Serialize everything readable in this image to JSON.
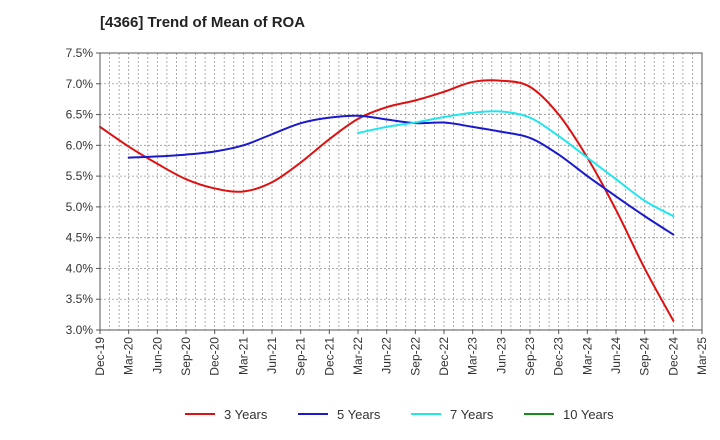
{
  "chart_data": {
    "type": "line",
    "title": "[4366]  Trend of Mean of ROA",
    "xlabel": "",
    "ylabel": "",
    "ylim": [
      3.0,
      7.5
    ],
    "y_ticks": [
      "3.0%",
      "3.5%",
      "4.0%",
      "4.5%",
      "5.0%",
      "5.5%",
      "6.0%",
      "6.5%",
      "7.0%",
      "7.5%"
    ],
    "x_tick_labels": [
      "Dec-19",
      "Mar-20",
      "Jun-20",
      "Sep-20",
      "Dec-20",
      "Mar-21",
      "Jun-21",
      "Sep-21",
      "Dec-21",
      "Mar-22",
      "Jun-22",
      "Sep-22",
      "Dec-22",
      "Mar-23",
      "Jun-23",
      "Sep-23",
      "Dec-23",
      "Mar-24",
      "Jun-24",
      "Sep-24",
      "Dec-24",
      "Mar-25"
    ],
    "grid": true,
    "legend_position": "bottom",
    "series": [
      {
        "name": "3 Years",
        "color": "#dd1111",
        "points": [
          [
            0,
            6.3
          ],
          [
            1,
            5.98
          ],
          [
            2,
            5.7
          ],
          [
            3,
            5.45
          ],
          [
            4,
            5.3
          ],
          [
            5,
            5.25
          ],
          [
            6,
            5.4
          ],
          [
            7,
            5.72
          ],
          [
            8,
            6.1
          ],
          [
            9,
            6.43
          ],
          [
            10,
            6.62
          ],
          [
            11,
            6.73
          ],
          [
            12,
            6.87
          ],
          [
            13,
            7.03
          ],
          [
            14,
            7.05
          ],
          [
            15,
            6.95
          ],
          [
            16,
            6.5
          ],
          [
            17,
            5.8
          ],
          [
            18,
            4.95
          ],
          [
            19,
            4.0
          ],
          [
            20,
            3.15
          ]
        ]
      },
      {
        "name": "5 Years",
        "color": "#1a1acc",
        "points": [
          [
            1,
            5.8
          ],
          [
            2,
            5.82
          ],
          [
            3,
            5.85
          ],
          [
            4,
            5.9
          ],
          [
            5,
            6.0
          ],
          [
            6,
            6.18
          ],
          [
            7,
            6.36
          ],
          [
            8,
            6.45
          ],
          [
            9,
            6.48
          ],
          [
            10,
            6.42
          ],
          [
            11,
            6.36
          ],
          [
            12,
            6.37
          ],
          [
            13,
            6.3
          ],
          [
            14,
            6.22
          ],
          [
            15,
            6.12
          ],
          [
            16,
            5.85
          ],
          [
            17,
            5.5
          ],
          [
            18,
            5.17
          ],
          [
            19,
            4.85
          ],
          [
            20,
            4.55
          ]
        ]
      },
      {
        "name": "7 Years",
        "color": "#22e5ee",
        "points": [
          [
            9,
            6.2
          ],
          [
            10,
            6.3
          ],
          [
            11,
            6.37
          ],
          [
            12,
            6.46
          ],
          [
            13,
            6.53
          ],
          [
            14,
            6.55
          ],
          [
            15,
            6.45
          ],
          [
            16,
            6.15
          ],
          [
            17,
            5.8
          ],
          [
            18,
            5.45
          ],
          [
            19,
            5.1
          ],
          [
            20,
            4.85
          ]
        ]
      },
      {
        "name": "10 Years",
        "color": "#1a8a1a",
        "points": []
      }
    ]
  }
}
